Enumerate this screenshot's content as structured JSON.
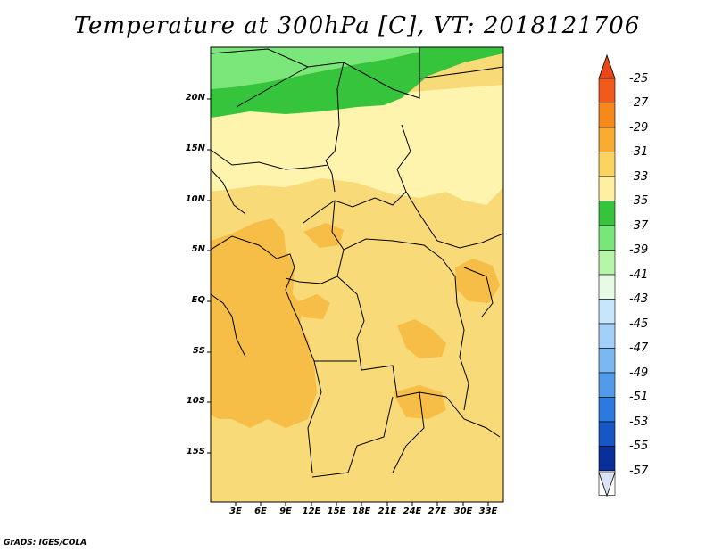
{
  "title": "Temperature at 300hPa [C], VT: 2018121706",
  "footer": "GrADS: IGES/COLA",
  "y_axis_labels": [
    "20N",
    "15N",
    "10N",
    "5N",
    "EQ",
    "5S",
    "10S",
    "15S"
  ],
  "x_axis_labels": [
    "3E",
    "6E",
    "9E",
    "12E",
    "15E",
    "18E",
    "21E",
    "24E",
    "27E",
    "30E",
    "33E"
  ],
  "colorbar": {
    "labels": [
      "-25",
      "-27",
      "-29",
      "-31",
      "-33",
      "-35",
      "-37",
      "-39",
      "-41",
      "-43",
      "-45",
      "-47",
      "-49",
      "-51",
      "-53",
      "-55",
      "-57"
    ],
    "colors": [
      "#f05a1a",
      "#f7891a",
      "#f9ac2f",
      "#fbd361",
      "#fef0a0",
      "#35c43c",
      "#78e77a",
      "#b7f6a9",
      "#e7fae6",
      "#c7e5fb",
      "#a3cff8",
      "#7bb8f2",
      "#519bea",
      "#2c7ae0",
      "#1657c8",
      "#0b2f9a",
      "#ffffff"
    ],
    "top_arrow_color": "#e8461b",
    "bottom_arrow_color": "#dbe2f4"
  },
  "map_colors": {
    "base": "#f9da78",
    "warm": "#f6bd47",
    "cool": "#fef4ae",
    "green_light": "#7be77a",
    "green_dark": "#35c43c",
    "border": "#000000"
  }
}
